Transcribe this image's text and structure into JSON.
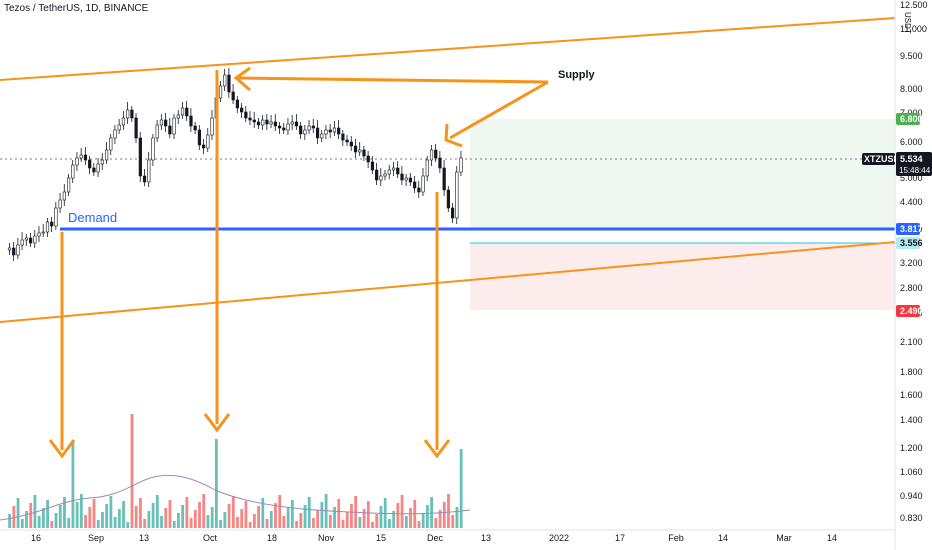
{
  "header": {
    "title": "Tezos / TetherUS, 1D, BINANCE"
  },
  "price_scale": {
    "currency": "USDT",
    "labels": [
      "12.500",
      "11.000",
      "9.500",
      "8.000",
      "7.000",
      "6.000",
      "5.000",
      "4.400",
      "3.800",
      "3.200",
      "2.800",
      "2.400",
      "2.100",
      "1.800",
      "1.600",
      "1.400",
      "1.200",
      "1.060",
      "0.940",
      "0.830"
    ]
  },
  "time_axis": {
    "labels": [
      "16",
      "Sep",
      "13",
      "Oct",
      "18",
      "Nov",
      "15",
      "Dec",
      "13",
      "2022",
      "17",
      "Feb",
      "14",
      "Mar",
      "14"
    ]
  },
  "badges": {
    "target": {
      "value": "6.800",
      "color": "#4caf50"
    },
    "symbol": {
      "name": "XTZUSDT",
      "value": "5.534",
      "countdown": "15:48:44",
      "color": "#131722"
    },
    "demand_level": {
      "value": "3.817",
      "color": "#2962ff"
    },
    "entry": {
      "value": "3.556",
      "color": "#26c6da"
    },
    "stop": {
      "value": "2.490",
      "color": "#f23645"
    }
  },
  "annotations": {
    "supply": "Supply",
    "demand": "Demand"
  },
  "colors": {
    "up": "#26a69a",
    "down": "#ef5350",
    "trend_line": "#f7931a",
    "demand_line": "#2962ff",
    "profit_zone": "#e8f5e9",
    "loss_zone": "#fdecec"
  }
}
